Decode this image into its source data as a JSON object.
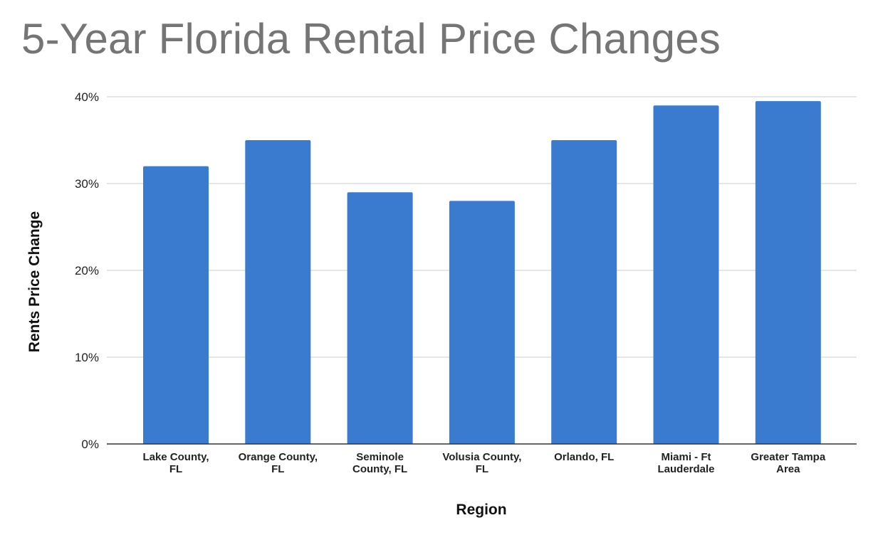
{
  "chart_data": {
    "type": "bar",
    "title": "5-Year Florida Rental Price Changes",
    "xlabel": "Region",
    "ylabel": "Rents Price Change",
    "categories": [
      [
        "Lake County,",
        "FL"
      ],
      [
        "Orange County,",
        "FL"
      ],
      [
        "Seminole",
        "County, FL"
      ],
      [
        "Volusia County,",
        "FL"
      ],
      [
        "Orlando, FL"
      ],
      [
        "Miami - Ft",
        "Lauderdale"
      ],
      [
        "Greater Tampa",
        "Area"
      ]
    ],
    "values": [
      32,
      35,
      29,
      28,
      35,
      39,
      39.5
    ],
    "ylim": [
      0,
      40
    ],
    "yticks": [
      0,
      10,
      20,
      30,
      40
    ],
    "ytick_labels": [
      "0%",
      "10%",
      "20%",
      "30%",
      "40%"
    ],
    "grid": true,
    "legend": "none",
    "bar_color": "#3a7bd0",
    "grid_color": "#cccccc",
    "axis_color": "#333333",
    "title_color": "#757575"
  }
}
